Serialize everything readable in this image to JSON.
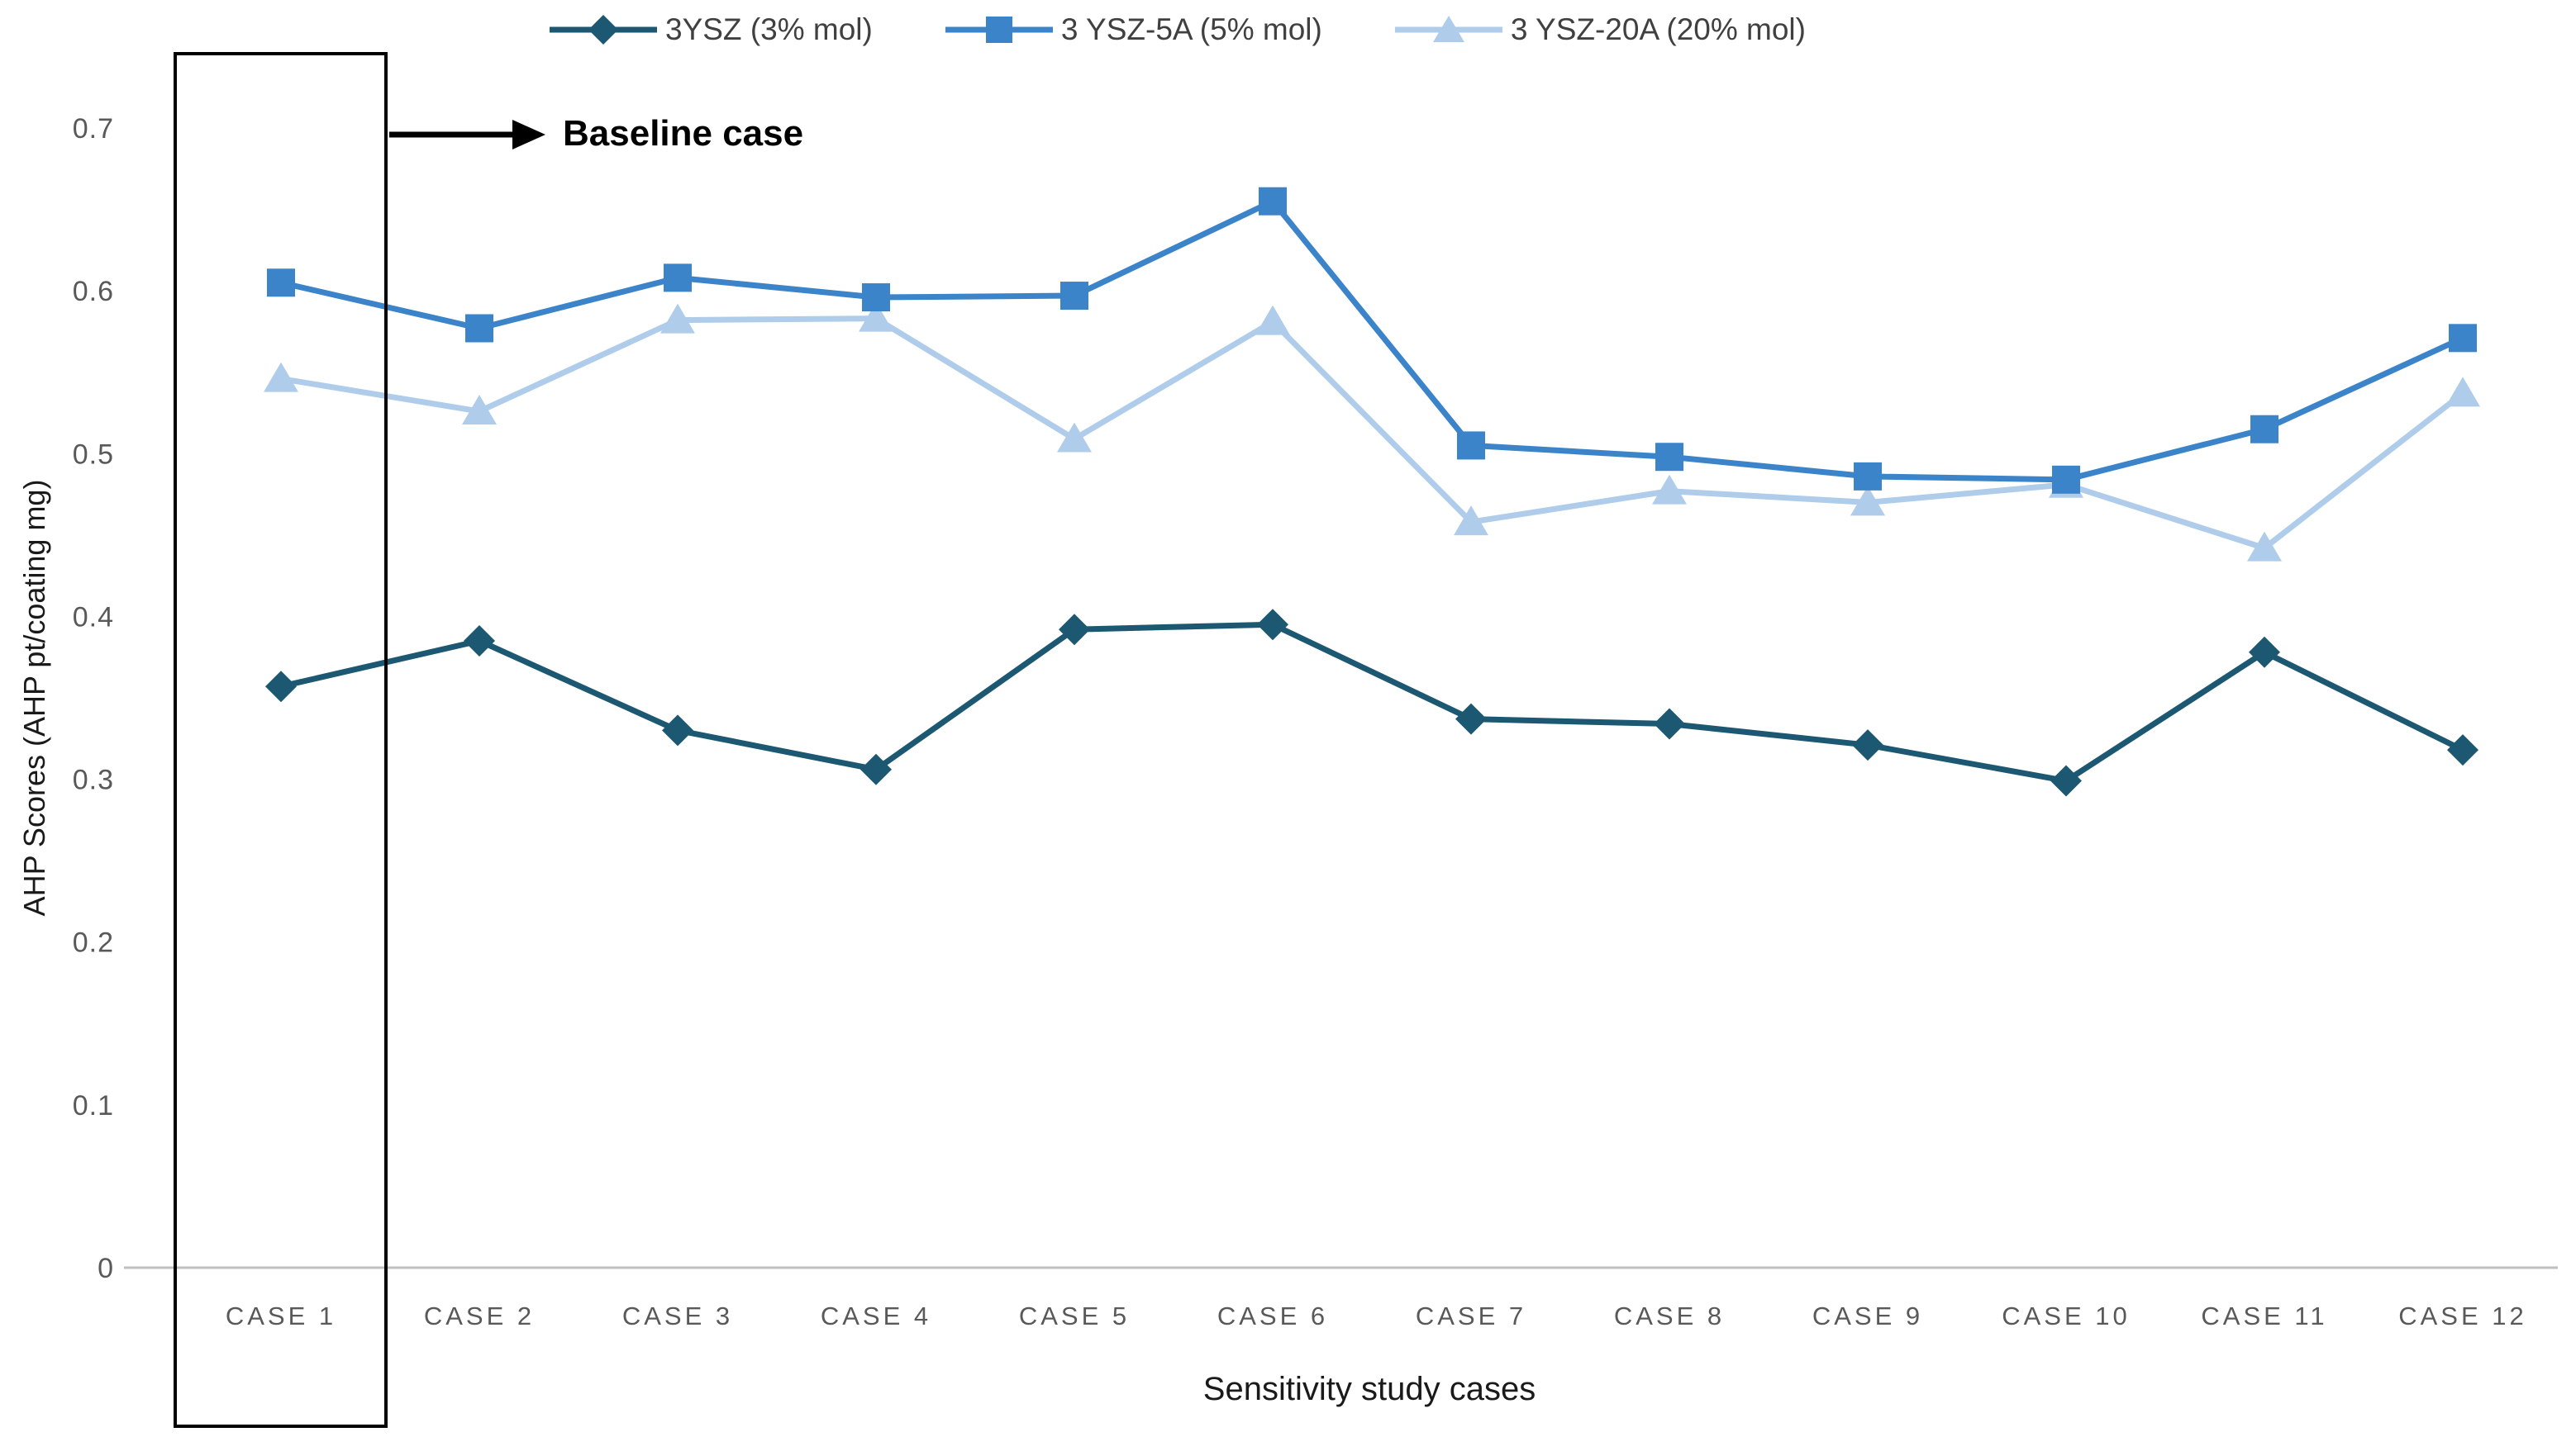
{
  "chart_data": {
    "type": "line",
    "title": "",
    "xlabel": "Sensitivity study cases",
    "ylabel": "AHP Scores (AHP pt/coating mg)",
    "categories": [
      "CASE 1",
      "CASE 2",
      "CASE 3",
      "CASE 4",
      "CASE 5",
      "CASE 6",
      "CASE 7",
      "CASE 8",
      "CASE 9",
      "CASE 10",
      "CASE 11",
      "CASE 12"
    ],
    "y_tick_labels": [
      "0",
      "0.1",
      "0.2",
      "0.3",
      "0.4",
      "0.5",
      "0.6",
      "0.7"
    ],
    "ylim": [
      0,
      0.7
    ],
    "grid": false,
    "legend_position": "top",
    "series": [
      {
        "name": "3YSZ (3% mol)",
        "marker": "diamond",
        "color": "#1C5872",
        "values": [
          0.357,
          0.385,
          0.33,
          0.306,
          0.392,
          0.395,
          0.337,
          0.334,
          0.321,
          0.299,
          0.378,
          0.318
        ]
      },
      {
        "name": "3 YSZ-5A (5% mol)",
        "marker": "square",
        "color": "#3C84C9",
        "values": [
          0.605,
          0.577,
          0.608,
          0.596,
          0.597,
          0.655,
          0.505,
          0.498,
          0.486,
          0.484,
          0.515,
          0.571
        ]
      },
      {
        "name": "3 YSZ-20A (20% mol)",
        "marker": "triangle",
        "color": "#AFCDEA",
        "values": [
          0.546,
          0.526,
          0.582,
          0.583,
          0.509,
          0.581,
          0.458,
          0.477,
          0.47,
          0.481,
          0.442,
          0.537
        ]
      }
    ],
    "annotation": {
      "label": "Baseline case",
      "highlight_category": "CASE 1"
    }
  },
  "colors": {
    "axis_line": "#BFBFBF",
    "tick_label": "#595959",
    "category_label": "#595959",
    "axis_title": "#1A1A1A",
    "legend_text": "#404040",
    "annotation": "#000000",
    "highlight_box": "#000000"
  }
}
